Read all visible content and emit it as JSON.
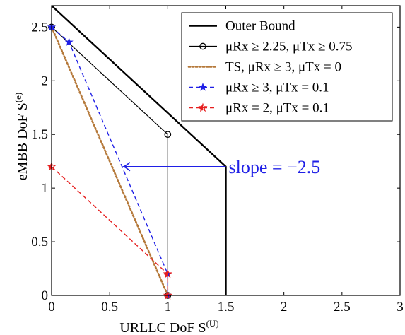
{
  "chart_data": {
    "type": "line",
    "xlabel": "URLLC DoF S",
    "xlabel_sup": "(U)",
    "ylabel": "eMBB DoF S",
    "ylabel_sup": "(e)",
    "xlim": [
      0,
      3
    ],
    "ylim": [
      0,
      2.7
    ],
    "xticks": [
      "0",
      "0.5",
      "1",
      "1.5",
      "2",
      "2.5",
      "3"
    ],
    "yticks": [
      "0",
      "0.5",
      "1",
      "1.5",
      "2",
      "2.5"
    ],
    "legend_position": "top-right",
    "series": [
      {
        "name": "Outer Bound",
        "color": "#000000",
        "style": "solid-thick",
        "marker": "none",
        "points": [
          [
            0,
            2.7
          ],
          [
            1.5,
            1.2
          ],
          [
            1.5,
            0
          ]
        ]
      },
      {
        "name": "μRx ≥ 2.25, μTx ≥ 0.75",
        "color": "#000000",
        "style": "solid",
        "marker": "circle",
        "points": [
          [
            0,
            2.5
          ],
          [
            1,
            1.5
          ],
          [
            1,
            0
          ]
        ]
      },
      {
        "name": "TS, μRx ≥ 3, μTx = 0",
        "color": "#b5793a",
        "style": "dotted",
        "marker": "none",
        "points": [
          [
            0,
            2.5
          ],
          [
            1,
            0
          ]
        ]
      },
      {
        "name": "μRx ≥ 3, μTx = 0.1",
        "color": "#1f1fe6",
        "style": "dashed",
        "marker": "star",
        "points": [
          [
            0,
            2.5
          ],
          [
            0.15,
            2.36
          ],
          [
            1,
            0.2
          ],
          [
            1,
            0
          ]
        ]
      },
      {
        "name": "μRx = 2, μTx = 0.1",
        "color": "#e61f1f",
        "style": "dashed",
        "marker": "half-star",
        "points": [
          [
            0,
            1.2
          ],
          [
            1,
            0.2
          ],
          [
            1,
            0
          ]
        ]
      }
    ],
    "annotation": {
      "text": "slope = −2.5",
      "color": "#1f1fe6",
      "arrow_from": [
        1.5,
        1.2
      ],
      "arrow_to": [
        0.62,
        1.2
      ]
    }
  }
}
